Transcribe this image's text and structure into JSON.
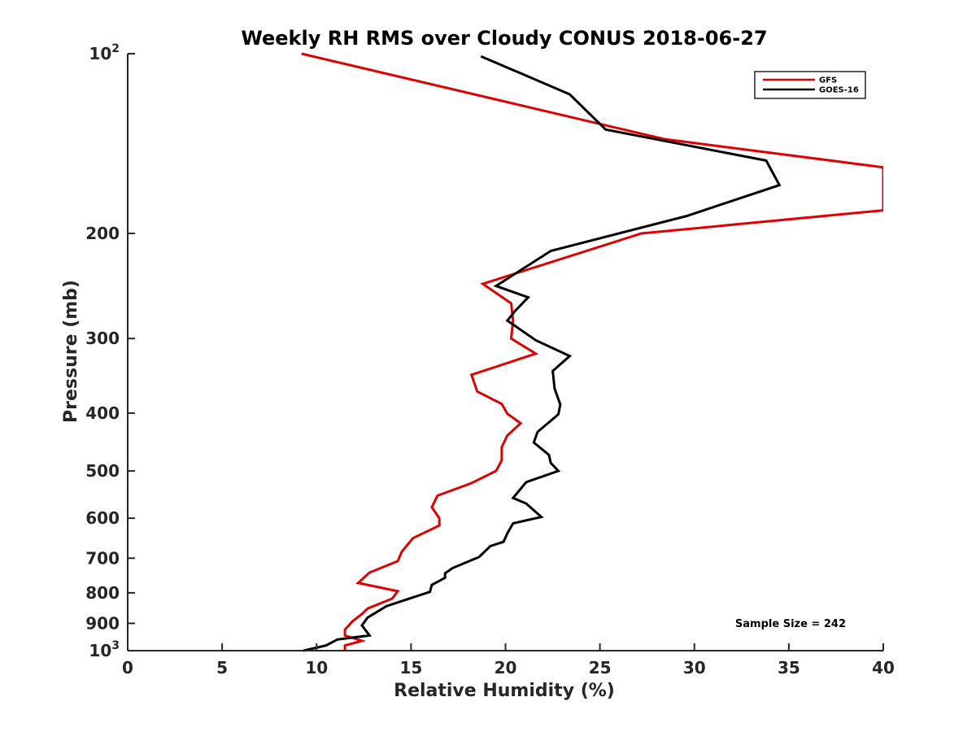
{
  "chart_data": {
    "type": "line",
    "title": "Weekly RH RMS over Cloudy CONUS 2018-06-27",
    "xlabel": "Relative Humidity (%)",
    "ylabel": "Pressure (mb)",
    "xlim": [
      0,
      40
    ],
    "ylim": [
      100,
      1000
    ],
    "y_scale": "log",
    "y_reversed": true,
    "grid": false,
    "legend_position": "top-right",
    "x_ticks": [
      0,
      5,
      10,
      15,
      20,
      25,
      30,
      35,
      40
    ],
    "y_ticks": [
      {
        "value": 100,
        "base": "10",
        "exp": "2",
        "label": ""
      },
      {
        "value": 200,
        "label": "200"
      },
      {
        "value": 300,
        "label": "300"
      },
      {
        "value": 400,
        "label": "400"
      },
      {
        "value": 500,
        "label": "500"
      },
      {
        "value": 600,
        "label": "600"
      },
      {
        "value": 700,
        "label": "700"
      },
      {
        "value": 800,
        "label": "800"
      },
      {
        "value": 900,
        "label": "900"
      },
      {
        "value": 1000,
        "base": "10",
        "exp": "3",
        "label": ""
      }
    ],
    "annotation": "Sample Size = 242",
    "series": [
      {
        "name": "GFS",
        "color": "#e00000",
        "x": [
          9.2,
          28.4,
          40.0,
          40.0,
          27.2,
          18.8,
          20.3,
          20.4,
          20.3,
          21.6,
          18.2,
          18.5,
          19.8,
          20.1,
          20.8,
          20.1,
          19.8,
          19.8,
          19.5,
          18.2,
          16.4,
          16.1,
          16.5,
          16.5,
          15.1,
          14.5,
          14.3,
          12.8,
          12.2,
          14.3,
          14.0,
          12.7,
          12.4,
          11.9,
          11.5,
          11.5,
          12.4,
          11.5,
          11.5
        ],
        "y": [
          100,
          139,
          155,
          183,
          200,
          243,
          262,
          280,
          300,
          318,
          345,
          368,
          386,
          401,
          416,
          436,
          456,
          480,
          500,
          524,
          550,
          575,
          600,
          617,
          648,
          683,
          708,
          740,
          770,
          795,
          818,
          850,
          868,
          893,
          922,
          943,
          963,
          980,
          1000
        ]
      },
      {
        "name": "GOES-16",
        "color": "#000000",
        "x": [
          18.7,
          23.4,
          25.3,
          33.8,
          34.5,
          29.6,
          22.4,
          19.5,
          21.2,
          20.5,
          20.1,
          21.6,
          23.4,
          22.5,
          22.6,
          22.9,
          22.8,
          21.7,
          21.5,
          22.3,
          22.4,
          22.8,
          21.1,
          20.4,
          21.1,
          21.9,
          20.4,
          20.1,
          19.9,
          19.2,
          18.6,
          17.2,
          16.8,
          16.8,
          16.1,
          16.0,
          13.7,
          12.7,
          12.4,
          12.8,
          11.1,
          10.5,
          9.3
        ],
        "y": [
          101,
          117,
          134,
          151,
          166,
          187,
          214,
          245,
          256,
          270,
          280,
          302,
          321,
          340,
          364,
          387,
          402,
          430,
          448,
          470,
          485,
          500,
          522,
          555,
          567,
          597,
          612,
          636,
          657,
          668,
          697,
          727,
          742,
          755,
          776,
          797,
          842,
          880,
          907,
          943,
          958,
          980,
          1000
        ]
      }
    ]
  }
}
